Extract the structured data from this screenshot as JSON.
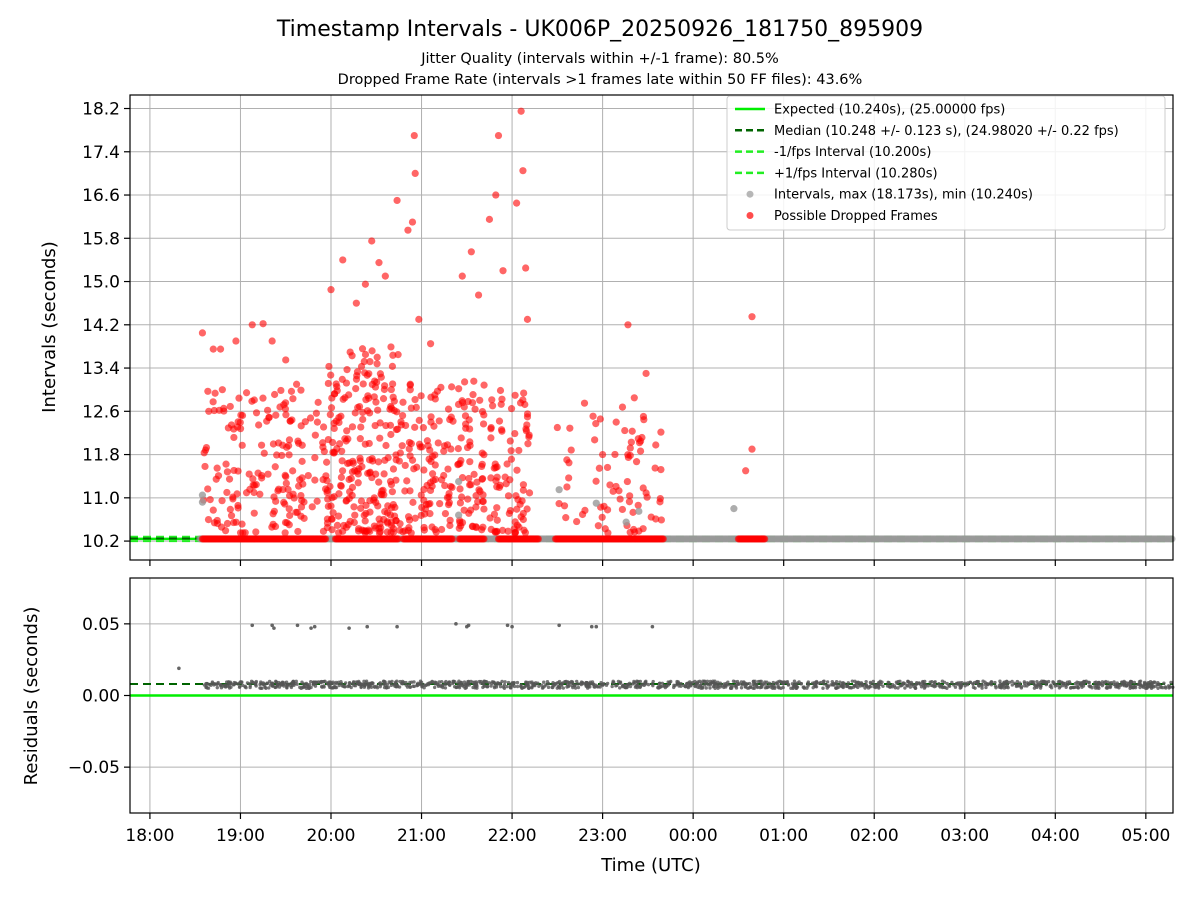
{
  "title": "Timestamp Intervals - UK006P_20250926_181750_895909",
  "subtitle1": "Jitter Quality (intervals within +/-1 frame): 80.5%",
  "subtitle2": "Dropped Frame Rate (intervals >1 frames late within 50 FF files): 43.6%",
  "colors": {
    "expected": "#00ee00",
    "median": "#006400",
    "fps_interval": "#22ee22",
    "intervals": "#999999",
    "dropped": "#ff0000",
    "residuals": "#555555",
    "grid": "#b0b0b0"
  },
  "chart_data": [
    {
      "type": "scatter",
      "panel": "top",
      "xlabel": "",
      "ylabel": "Intervals (seconds)",
      "xlim": [
        17.78,
        29.3
      ],
      "ylim": [
        9.85,
        18.45
      ],
      "y_ticks": [
        "10.2",
        "11.0",
        "11.8",
        "12.6",
        "13.4",
        "14.2",
        "15.0",
        "15.8",
        "16.6",
        "17.4",
        "18.2"
      ],
      "y_tick_values": [
        10.2,
        11.0,
        11.8,
        12.6,
        13.4,
        14.2,
        15.0,
        15.8,
        16.6,
        17.4,
        18.2
      ],
      "grid": true,
      "legend_position": "top-right",
      "legend": [
        "Expected (10.240s), (25.00000 fps)",
        "Median (10.248 +/- 0.123 s), (24.98020 +/- 0.22 fps)",
        "-1/fps Interval (10.200s)",
        "+1/fps Interval (10.280s)",
        "Intervals, max (18.173s), min (10.240s)",
        "Possible Dropped Frames"
      ],
      "lines": {
        "expected": 10.24,
        "median": 10.248,
        "minus_fps": 10.2,
        "plus_fps": 10.28
      },
      "intervals_gray": [
        [
          18.58,
          11.05
        ],
        [
          18.58,
          10.92
        ],
        [
          21.41,
          11.3
        ],
        [
          21.41,
          10.68
        ],
        [
          22.52,
          11.15
        ],
        [
          22.93,
          10.9
        ],
        [
          23.26,
          10.55
        ],
        [
          23.4,
          10.75
        ],
        [
          24.45,
          10.8
        ]
      ],
      "dropped_frames": [
        [
          18.58,
          14.05
        ],
        [
          18.65,
          12.6
        ],
        [
          18.7,
          13.75
        ],
        [
          18.78,
          13.75
        ],
        [
          18.8,
          13.0
        ],
        [
          18.85,
          11.1
        ],
        [
          18.95,
          13.9
        ],
        [
          19.13,
          14.2
        ],
        [
          19.25,
          14.22
        ],
        [
          19.35,
          13.9
        ],
        [
          19.5,
          13.55
        ],
        [
          19.62,
          13.1
        ],
        [
          19.85,
          12.4
        ],
        [
          20.0,
          14.85
        ],
        [
          20.13,
          15.4
        ],
        [
          20.28,
          14.6
        ],
        [
          20.38,
          14.95
        ],
        [
          20.45,
          15.75
        ],
        [
          20.53,
          15.35
        ],
        [
          20.6,
          15.1
        ],
        [
          20.73,
          16.5
        ],
        [
          20.85,
          15.95
        ],
        [
          20.9,
          16.1
        ],
        [
          20.92,
          17.7
        ],
        [
          20.93,
          17.0
        ],
        [
          20.97,
          14.3
        ],
        [
          21.1,
          13.85
        ],
        [
          21.45,
          15.1
        ],
        [
          21.55,
          15.55
        ],
        [
          21.63,
          14.75
        ],
        [
          21.75,
          16.15
        ],
        [
          21.85,
          17.7
        ],
        [
          21.82,
          16.6
        ],
        [
          21.9,
          15.2
        ],
        [
          22.05,
          16.45
        ],
        [
          22.1,
          18.15
        ],
        [
          22.12,
          17.05
        ],
        [
          22.15,
          15.25
        ],
        [
          22.17,
          14.3
        ],
        [
          22.5,
          12.3
        ],
        [
          22.8,
          12.75
        ],
        [
          23.0,
          11.8
        ],
        [
          23.15,
          12.4
        ],
        [
          23.28,
          14.2
        ],
        [
          23.35,
          12.85
        ],
        [
          23.42,
          12.05
        ],
        [
          23.48,
          13.3
        ],
        [
          23.58,
          11.55
        ],
        [
          24.65,
          14.35
        ],
        [
          24.65,
          11.9
        ],
        [
          24.58,
          11.5
        ]
      ],
      "dropped_band": [
        [
          18.58,
          19.95
        ],
        [
          20.05,
          20.75
        ],
        [
          20.8,
          21.35
        ],
        [
          21.42,
          21.7
        ],
        [
          21.85,
          22.3
        ],
        [
          22.48,
          23.68
        ],
        [
          24.5,
          24.8
        ]
      ],
      "dropped_band_y": 10.24,
      "intervals_band": [
        18.55,
        29.3
      ],
      "random_clusters": [
        {
          "x": [
            18.58,
            19.95
          ],
          "y": [
            10.35,
            13.0
          ],
          "n": 170
        },
        {
          "x": [
            19.95,
            20.75
          ],
          "y": [
            10.35,
            13.8
          ],
          "n": 230
        },
        {
          "x": [
            20.75,
            21.35
          ],
          "y": [
            10.35,
            13.2
          ],
          "n": 110
        },
        {
          "x": [
            21.4,
            21.7
          ],
          "y": [
            10.35,
            13.3
          ],
          "n": 70
        },
        {
          "x": [
            21.75,
            22.2
          ],
          "y": [
            10.35,
            13.0
          ],
          "n": 80
        },
        {
          "x": [
            22.5,
            23.65
          ],
          "y": [
            10.35,
            12.8
          ],
          "n": 70
        }
      ]
    },
    {
      "type": "scatter",
      "panel": "bottom",
      "xlabel": "Time (UTC)",
      "ylabel": "Residuals (seconds)",
      "xlim": [
        17.78,
        29.3
      ],
      "ylim": [
        -0.082,
        0.082
      ],
      "y_ticks": [
        "−0.05",
        "0.00",
        "0.05"
      ],
      "y_tick_values": [
        -0.05,
        0.0,
        0.05
      ],
      "x_ticks": [
        "18:00",
        "19:00",
        "20:00",
        "21:00",
        "22:00",
        "23:00",
        "00:00",
        "01:00",
        "02:00",
        "03:00",
        "04:00",
        "05:00"
      ],
      "x_tick_values": [
        18,
        19,
        20,
        21,
        22,
        23,
        24,
        25,
        26,
        27,
        28,
        29
      ],
      "grid": true,
      "lines": {
        "expected": 0.0,
        "median": 0.008
      },
      "residual_band": {
        "x": [
          18.6,
          29.3
        ],
        "y_center": 0.0075,
        "spread": 0.0025,
        "n": 1300
      },
      "outliers": [
        [
          18.32,
          0.019
        ],
        [
          19.13,
          0.049
        ],
        [
          19.35,
          0.049
        ],
        [
          19.37,
          0.047
        ],
        [
          19.63,
          0.049
        ],
        [
          19.78,
          0.047
        ],
        [
          19.82,
          0.048
        ],
        [
          20.2,
          0.047
        ],
        [
          20.4,
          0.048
        ],
        [
          20.73,
          0.048
        ],
        [
          21.38,
          0.05
        ],
        [
          21.5,
          0.048
        ],
        [
          21.52,
          0.049
        ],
        [
          21.95,
          0.049
        ],
        [
          22.0,
          0.048
        ],
        [
          22.52,
          0.049
        ],
        [
          22.88,
          0.048
        ],
        [
          22.93,
          0.048
        ],
        [
          23.55,
          0.048
        ]
      ]
    }
  ]
}
